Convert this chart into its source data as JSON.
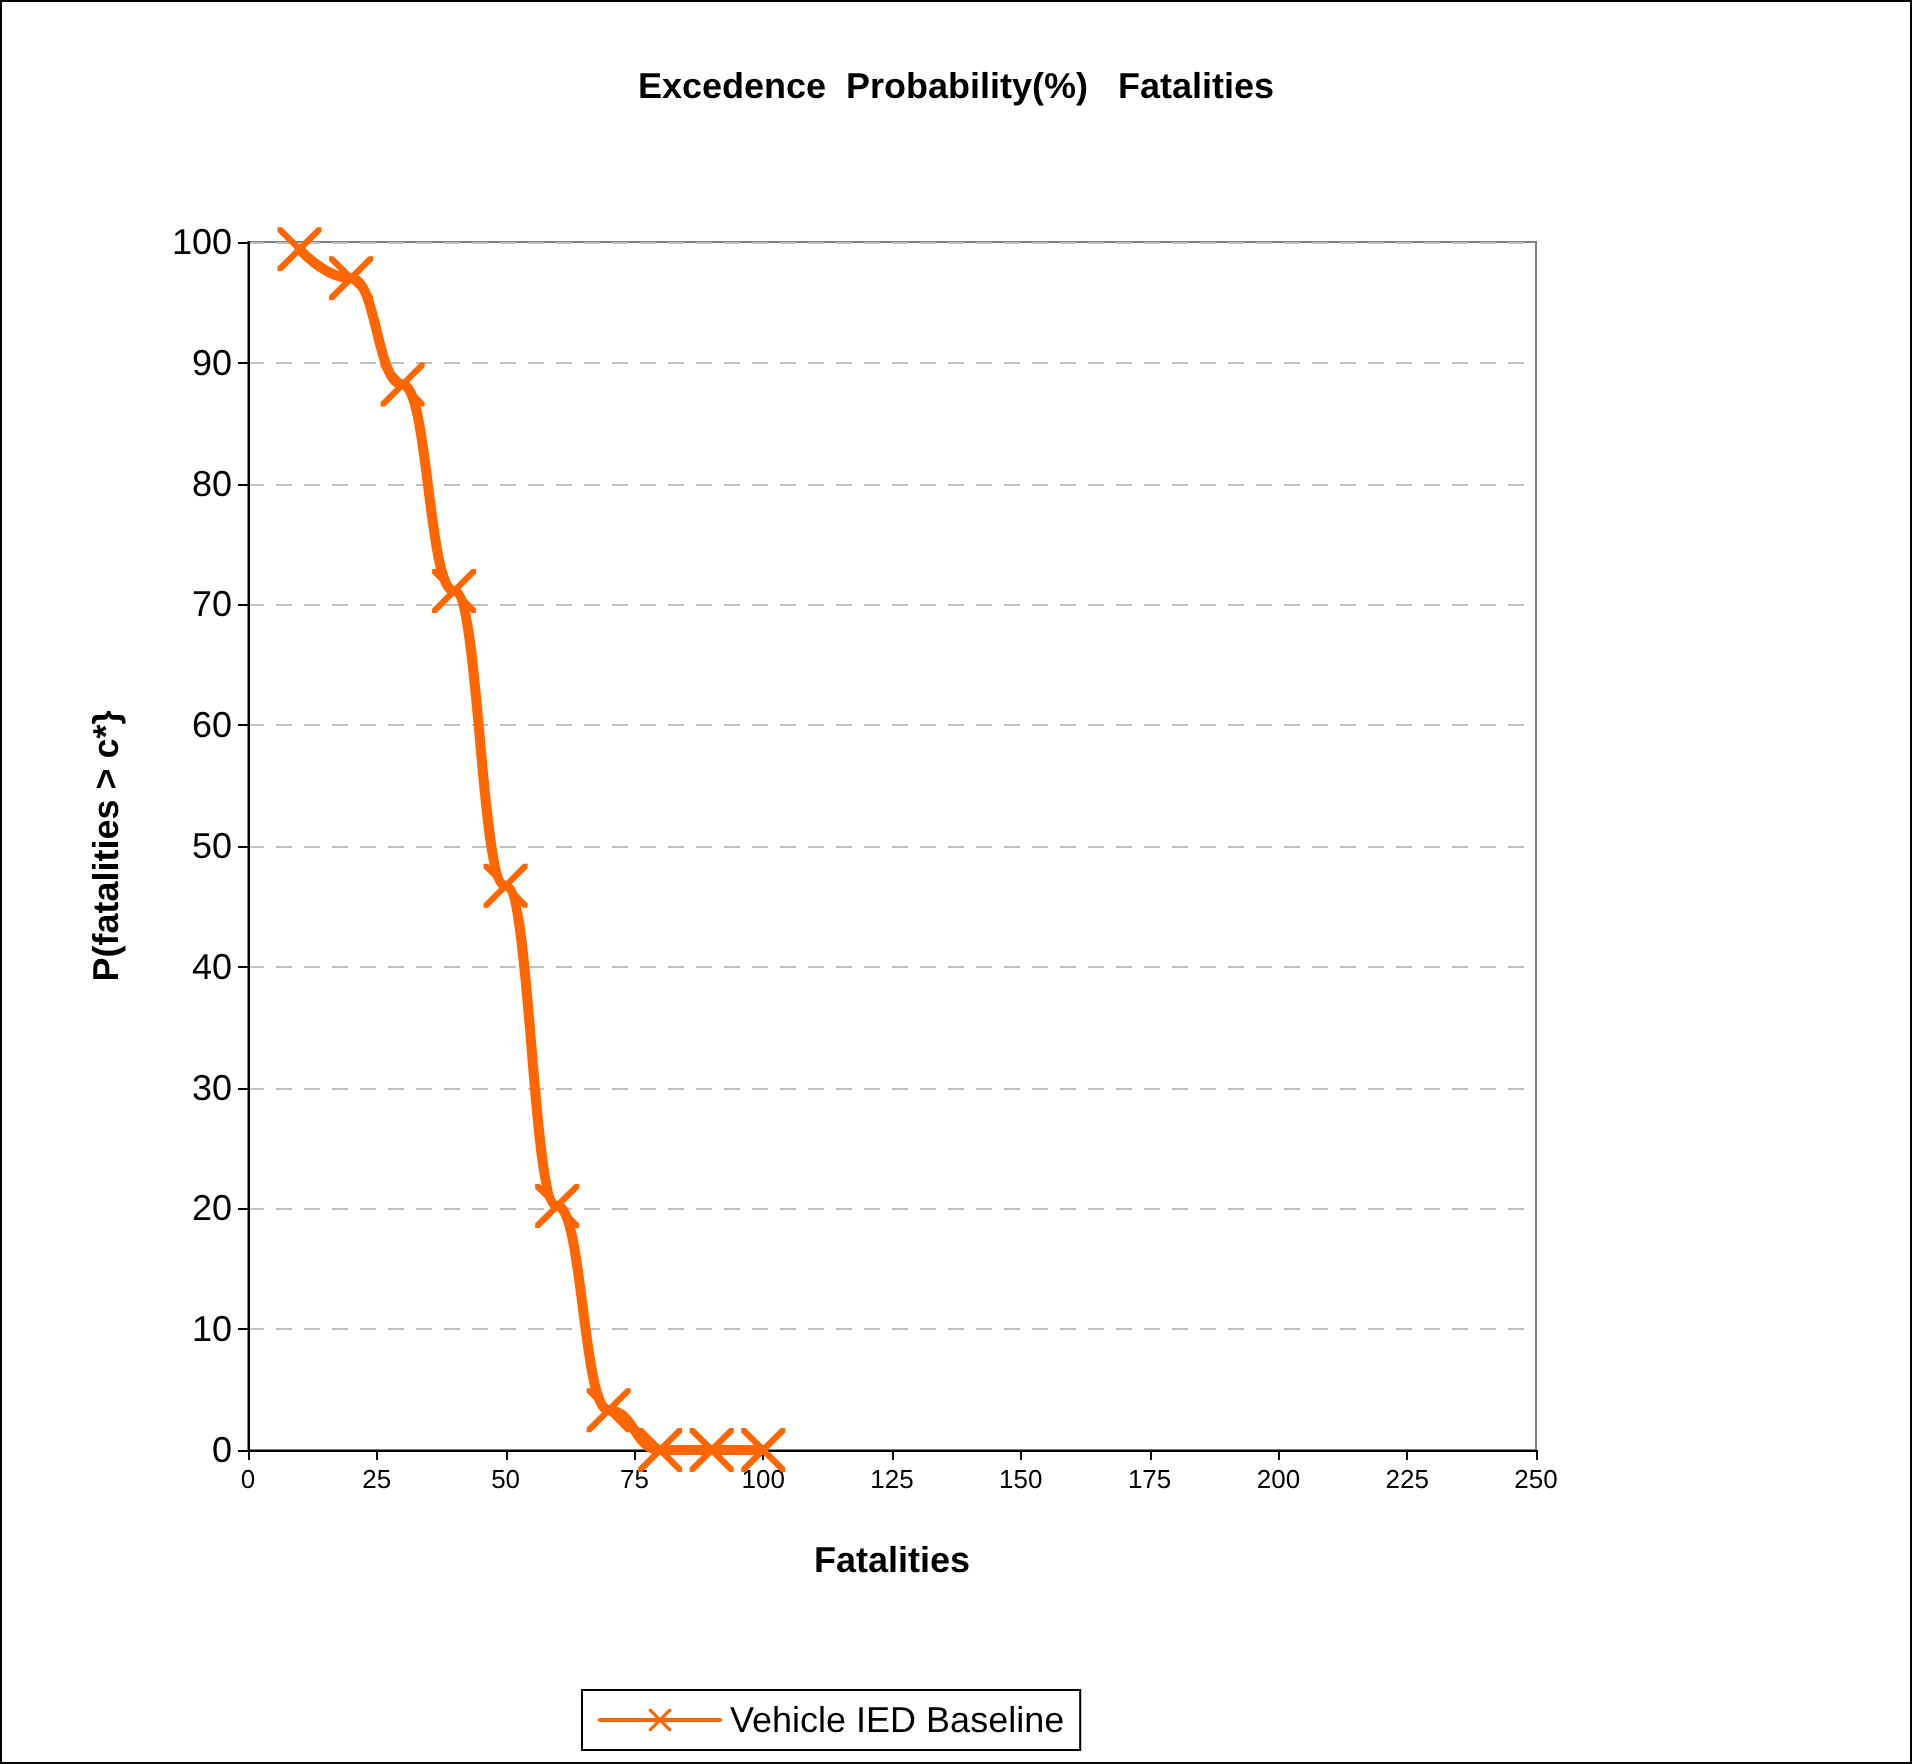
{
  "chart_data": {
    "type": "line",
    "title": "Excedence  Probability(%)   Fatalities",
    "xlabel": "Fatalities",
    "ylabel": "P(fatalities > c*}",
    "x": [
      10,
      20,
      30,
      40,
      50,
      60,
      70,
      80,
      90,
      100
    ],
    "series": [
      {
        "name": "Vehicle IED Baseline",
        "color": "#ff6600",
        "values": [
          99.4,
          97,
          88.2,
          71.1,
          46.7,
          20.2,
          3.3,
          0,
          0,
          0
        ]
      }
    ],
    "xlim": [
      0,
      250
    ],
    "xticks": [
      0,
      25,
      50,
      75,
      100,
      125,
      150,
      175,
      200,
      225,
      250
    ],
    "ylim": [
      0,
      100
    ],
    "yticks": [
      0,
      10,
      20,
      30,
      40,
      50,
      60,
      70,
      80,
      90,
      100
    ],
    "grid": "y",
    "legend": "bottom",
    "marker": "cross",
    "line_style": "solid"
  }
}
